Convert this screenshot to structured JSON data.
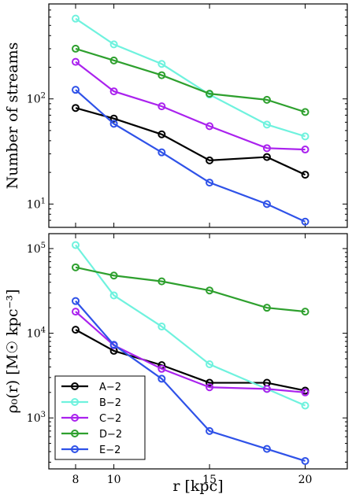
{
  "chart_data": [
    {
      "type": "line",
      "panel": "top",
      "ylabel": "Number of streams",
      "xlabel": "",
      "yscale": "log",
      "ylim": [
        6,
        800
      ],
      "xlim": [
        6.6,
        22.2
      ],
      "xticks": [
        8,
        10,
        15,
        20
      ],
      "yticks": [
        {
          "v": 10,
          "base": "10",
          "exp": "1"
        },
        {
          "v": 100,
          "base": "10",
          "exp": "2"
        }
      ],
      "grid": false,
      "x": [
        8,
        10,
        12.5,
        15,
        18,
        20
      ],
      "series": [
        {
          "name": "A−2",
          "color": "#000000",
          "values": [
            82,
            65,
            46,
            26,
            28,
            19
          ]
        },
        {
          "name": "B−2",
          "color": "#6ff2de",
          "values": [
            580,
            330,
            215,
            110,
            57,
            44
          ]
        },
        {
          "name": "C−2",
          "color": "#aa22ee",
          "values": [
            225,
            118,
            85,
            55,
            34,
            33
          ]
        },
        {
          "name": "D−2",
          "color": "#2ea02e",
          "values": [
            300,
            232,
            168,
            112,
            98,
            75
          ]
        },
        {
          "name": "E−2",
          "color": "#2f52e8",
          "values": [
            122,
            58,
            31,
            16,
            10,
            6.8
          ]
        }
      ]
    },
    {
      "type": "line",
      "panel": "bottom",
      "ylabel": "ρ₀(r) [M☉ kpc⁻³]",
      "xlabel": "r [kpc]",
      "yscale": "log",
      "ylim": [
        250,
        150000
      ],
      "xlim": [
        6.6,
        22.2
      ],
      "xticks": [
        8,
        10,
        15,
        20
      ],
      "yticks": [
        {
          "v": 1000,
          "base": "10",
          "exp": "3"
        },
        {
          "v": 10000,
          "base": "10",
          "exp": "4"
        },
        {
          "v": 100000,
          "base": "10",
          "exp": "5"
        }
      ],
      "grid": false,
      "legend_position": "bottom-left",
      "x": [
        8,
        10,
        12.5,
        15,
        18,
        20
      ],
      "series": [
        {
          "name": "A−2",
          "color": "#000000",
          "values": [
            11000,
            6200,
            4200,
            2600,
            2600,
            2100
          ]
        },
        {
          "name": "B−2",
          "color": "#6ff2de",
          "values": [
            110000,
            28000,
            12000,
            4300,
            2200,
            1400
          ]
        },
        {
          "name": "C−2",
          "color": "#aa22ee",
          "values": [
            18000,
            7200,
            3800,
            2300,
            2200,
            2000
          ]
        },
        {
          "name": "D−2",
          "color": "#2ea02e",
          "values": [
            60000,
            48000,
            41000,
            32000,
            20000,
            18000
          ]
        },
        {
          "name": "E−2",
          "color": "#2f52e8",
          "values": [
            24000,
            7300,
            2900,
            700,
            430,
            310
          ]
        }
      ]
    }
  ]
}
